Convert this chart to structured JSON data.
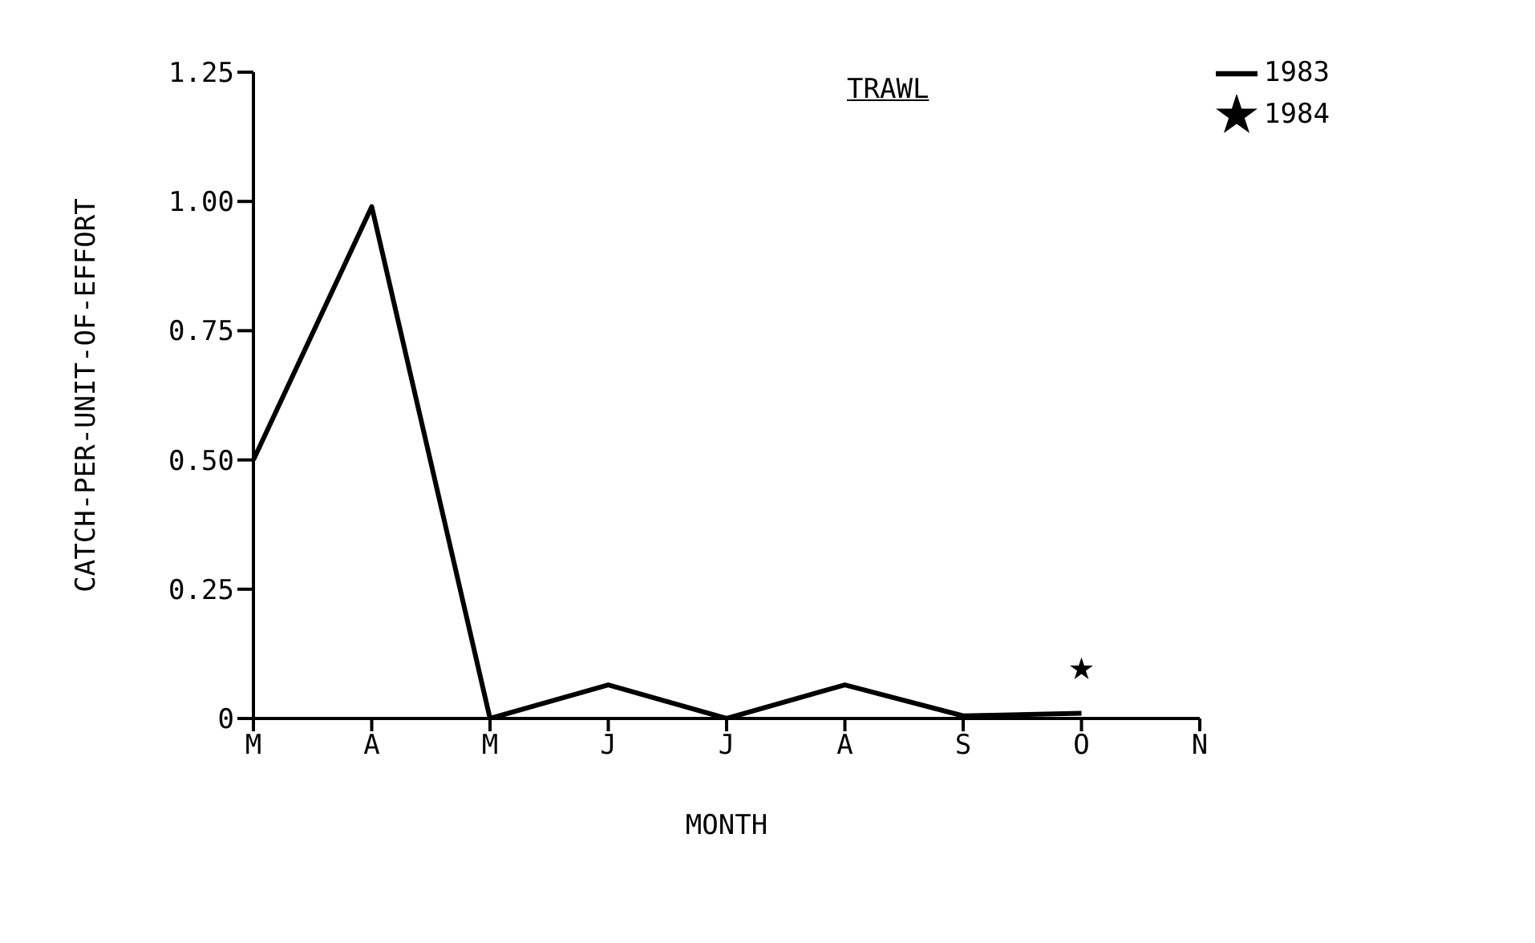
{
  "chart_data": {
    "type": "line",
    "title": "TRAWL",
    "xlabel": "MONTH",
    "ylabel": "CATCH-PER-UNIT-OF-EFFORT",
    "categories": [
      "M",
      "A",
      "M",
      "J",
      "J",
      "A",
      "S",
      "O",
      "N"
    ],
    "series": [
      {
        "name": "1983",
        "color": "#000000",
        "values": [
          0.5,
          0.99,
          0,
          0.065,
          0,
          0.065,
          0.005,
          0.01,
          null
        ]
      },
      {
        "name": "1984",
        "type": "scatter",
        "marker": "star",
        "color": "#000000",
        "values": [
          null,
          null,
          null,
          null,
          null,
          null,
          null,
          0.095,
          null
        ]
      }
    ],
    "ylim": [
      0,
      1.25
    ],
    "yticks": [
      0,
      0.25,
      {
        "value": 0.5,
        "label": "0.50"
      },
      0.75,
      {
        "value": 1,
        "label": "1.00"
      },
      1.25
    ],
    "legend": "top right",
    "marker": "none"
  }
}
